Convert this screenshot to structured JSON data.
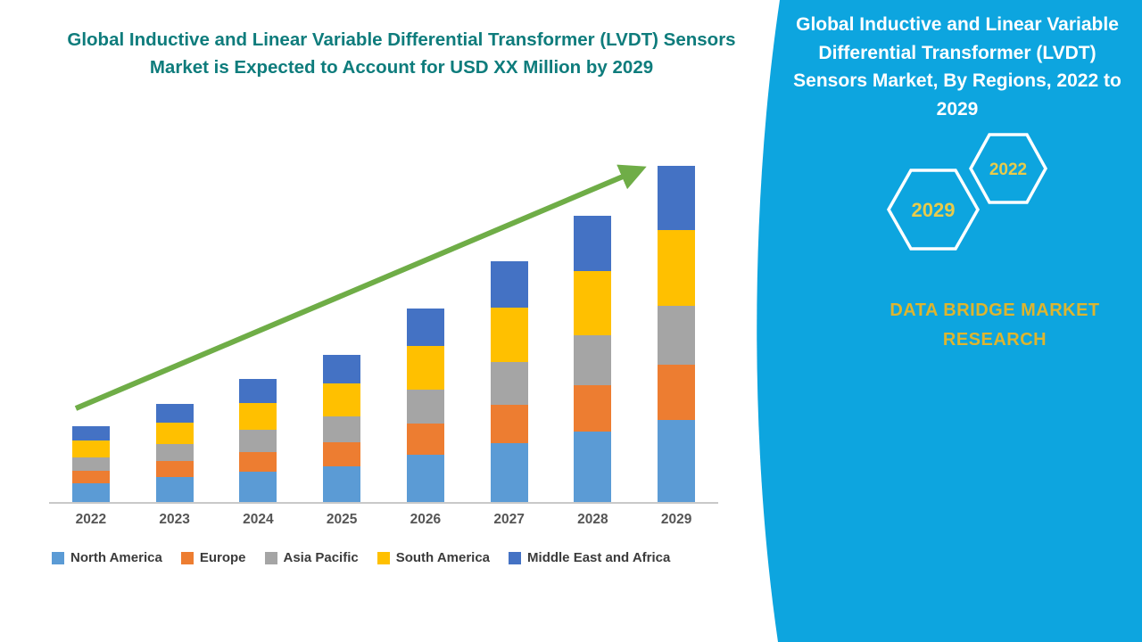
{
  "left": {
    "title": "Global Inductive and Linear Variable Differential Transformer (LVDT) Sensors Market is Expected to Account for USD XX Million by 2029"
  },
  "chart_data": {
    "type": "bar",
    "stacked": true,
    "title": "Global Inductive and Linear Variable Differential Transformer (LVDT) Sensors Market is Expected to Account for USD XX Million by 2029",
    "categories": [
      "2022",
      "2023",
      "2024",
      "2025",
      "2026",
      "2027",
      "2028",
      "2029"
    ],
    "series": [
      {
        "name": "North America",
        "color": "#5B9BD5",
        "values": [
          20,
          26,
          32,
          38,
          50,
          62,
          74,
          87
        ]
      },
      {
        "name": "Europe",
        "color": "#ED7D31",
        "values": [
          13,
          17,
          21,
          25,
          33,
          41,
          49,
          58
        ]
      },
      {
        "name": "Asia Pacific",
        "color": "#A5A5A5",
        "values": [
          14,
          18,
          23,
          27,
          36,
          45,
          53,
          62
        ]
      },
      {
        "name": "South America",
        "color": "#FFC000",
        "values": [
          18,
          23,
          29,
          35,
          46,
          57,
          68,
          80
        ]
      },
      {
        "name": "Middle East and Africa",
        "color": "#4472C4",
        "values": [
          15,
          20,
          25,
          30,
          39,
          49,
          58,
          68
        ]
      }
    ],
    "xlabel": "",
    "ylabel": "",
    "ylim": [
      0,
      400
    ],
    "grid": false,
    "legend_position": "bottom",
    "annotations": {
      "trend_arrow": true,
      "arrow_color": "#6FAD47"
    }
  },
  "right_panel": {
    "title": "Global Inductive and Linear Variable Differential Transformer (LVDT) Sensors Market, By Regions, 2022 to 2029",
    "hexagons": [
      {
        "label": "2029"
      },
      {
        "label": "2022"
      }
    ],
    "brand": "DATA BRIDGE MARKET RESEARCH",
    "colors": {
      "background": "#0DA5DF",
      "accent_yellow": "#DDB52F",
      "hex_year_yellow": "#E8CB4B",
      "title_teal": "#0E7C7C"
    }
  }
}
